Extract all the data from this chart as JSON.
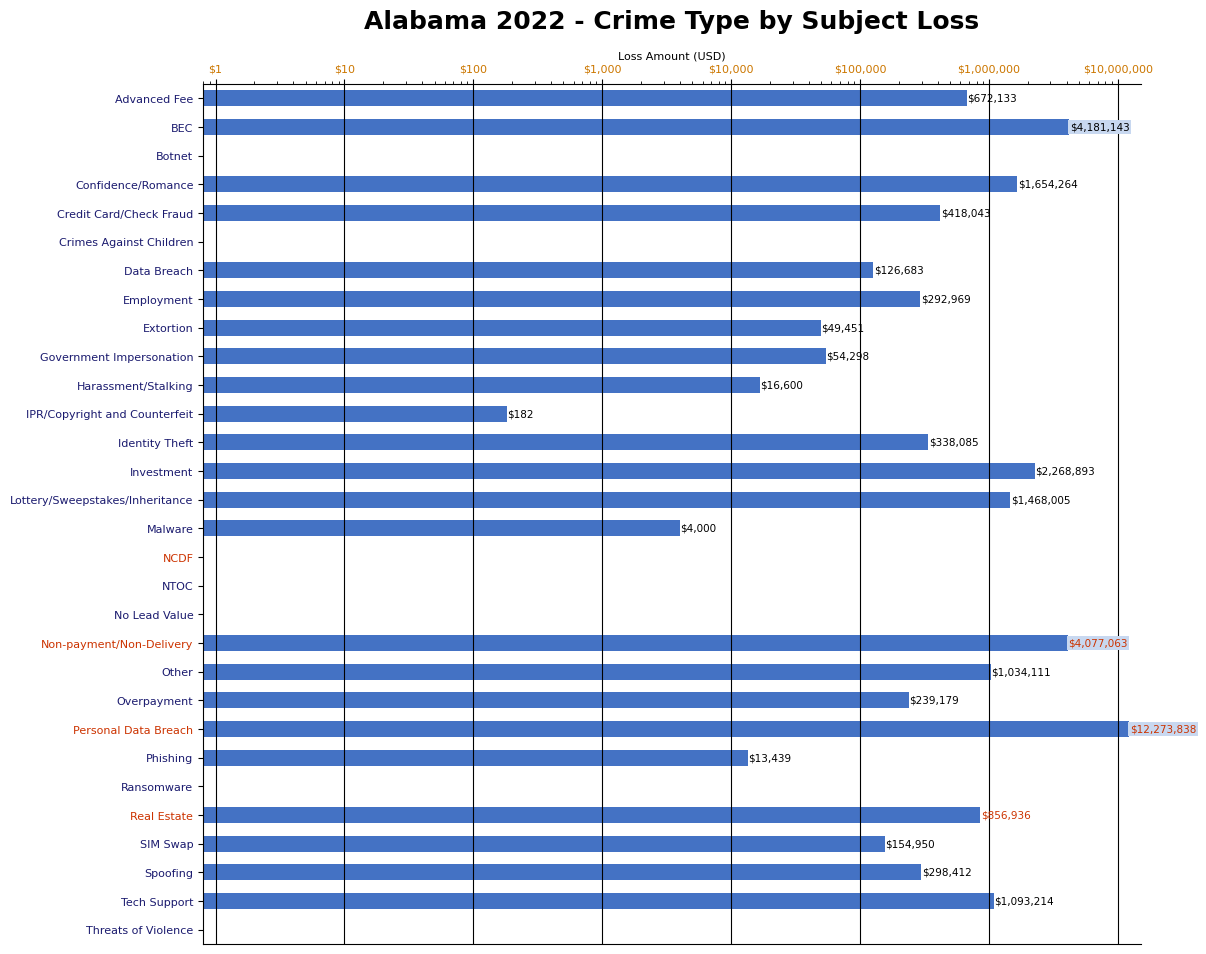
{
  "title": "Alabama 2022 - Crime Type by Subject Loss",
  "xlabel": "Loss Amount (USD)",
  "categories": [
    "Advanced Fee",
    "BEC",
    "Botnet",
    "Confidence/Romance",
    "Credit Card/Check Fraud",
    "Crimes Against Children",
    "Data Breach",
    "Employment",
    "Extortion",
    "Government Impersonation",
    "Harassment/Stalking",
    "IPR/Copyright and Counterfeit",
    "Identity Theft",
    "Investment",
    "Lottery/Sweepstakes/Inheritance",
    "Malware",
    "NCDF",
    "NTOC",
    "No Lead Value",
    "Non-payment/Non-Delivery",
    "Other",
    "Overpayment",
    "Personal Data Breach",
    "Phishing",
    "Ransomware",
    "Real Estate",
    "SIM Swap",
    "Spoofing",
    "Tech Support",
    "Threats of Violence"
  ],
  "values": [
    672133,
    4181143,
    0,
    1654264,
    418043,
    0,
    126683,
    292969,
    49451,
    54298,
    16600,
    182,
    338085,
    2268893,
    1468005,
    4000,
    0,
    0,
    0,
    4077063,
    1034111,
    239179,
    12273838,
    13439,
    0,
    856936,
    154950,
    298412,
    1093214,
    0
  ],
  "bar_color": "#4472C4",
  "label_color_default": "#000000",
  "label_color_special": {
    "NCDF": "#CC3300",
    "Real Estate": "#CC3300",
    "Personal Data Breach": "#CC3300",
    "Non-payment/Non-Delivery": "#CC3300"
  },
  "boxed_labels": [
    "BEC",
    "Non-payment/Non-Delivery",
    "Personal Data Breach"
  ],
  "background_color": "#FFFFFF",
  "x_ticks": [
    1,
    10,
    100,
    1000,
    10000,
    100000,
    1000000,
    10000000
  ],
  "x_tick_labels": [
    "$1",
    "$10",
    "$100",
    "$1,000",
    "$10,000",
    "$100,000",
    "$1,000,000",
    "$10,000,000"
  ],
  "title_fontsize": 18,
  "xlabel_fontsize": 8,
  "tick_fontsize": 8,
  "bar_label_fontsize": 7.5,
  "ytick_fontsize": 8
}
